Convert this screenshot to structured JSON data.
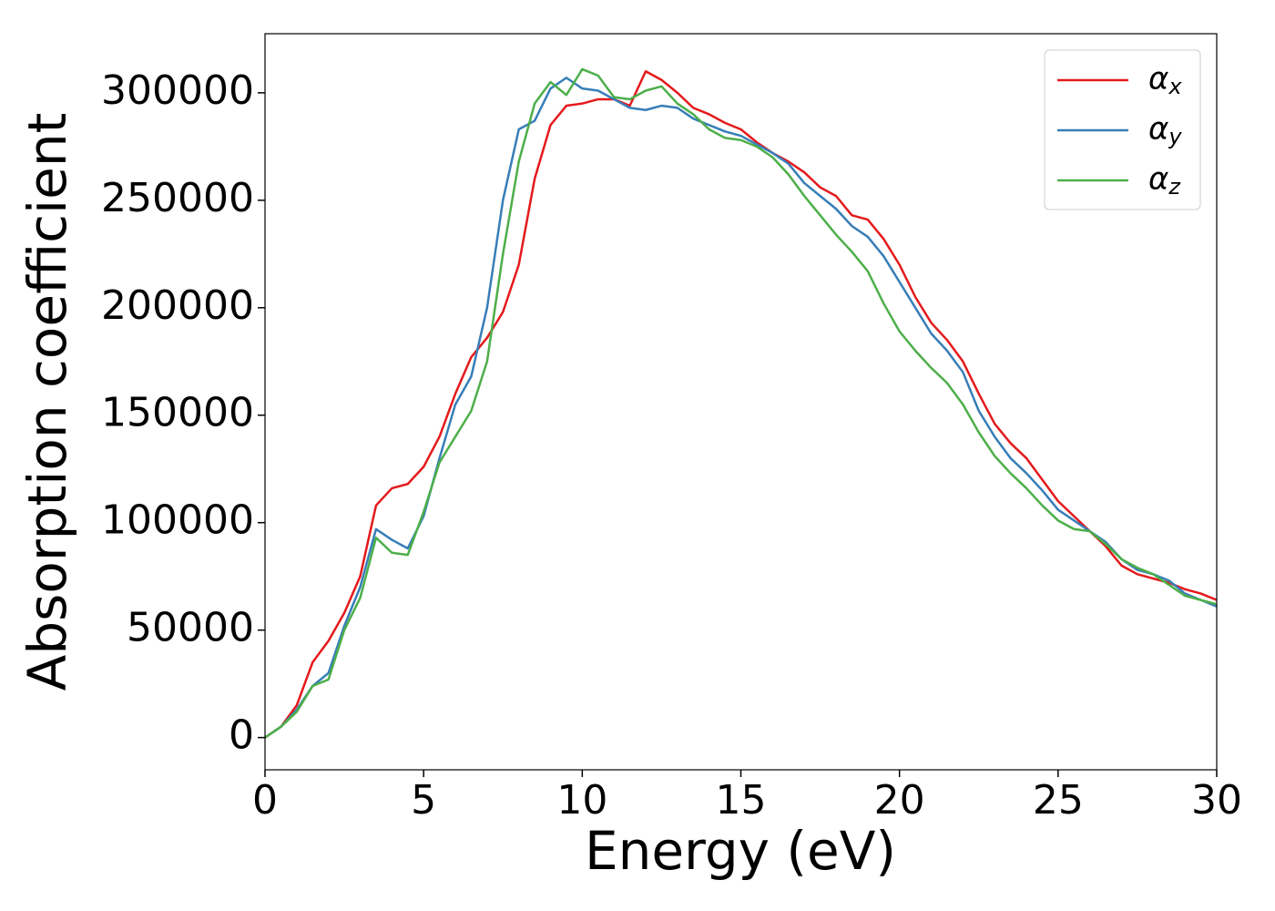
{
  "chart_data": {
    "type": "line",
    "xlabel": "Energy (eV)",
    "ylabel": "Absorption coefficient",
    "x": [
      0,
      0.5,
      1,
      1.5,
      2,
      2.5,
      3,
      3.5,
      4,
      4.5,
      5,
      5.5,
      6,
      6.5,
      7,
      7.5,
      8,
      8.5,
      9,
      9.5,
      10,
      10.5,
      11,
      11.5,
      12,
      12.5,
      13,
      13.5,
      14,
      14.5,
      15,
      15.5,
      16,
      16.5,
      17,
      17.5,
      18,
      18.5,
      19,
      19.5,
      20,
      20.5,
      21,
      21.5,
      22,
      22.5,
      23,
      23.5,
      24,
      24.5,
      25,
      25.5,
      26,
      26.5,
      27,
      27.5,
      28,
      28.5,
      29,
      29.5,
      30
    ],
    "series": [
      {
        "name": "αx",
        "color": "#e41a1c",
        "values": [
          0,
          5000,
          15000,
          35000,
          45000,
          58000,
          75000,
          108000,
          116000,
          118000,
          126000,
          140000,
          160000,
          177000,
          186000,
          198000,
          220000,
          260000,
          285000,
          294000,
          295000,
          297000,
          297000,
          294000,
          310000,
          306000,
          300000,
          293000,
          290000,
          286000,
          283000,
          277000,
          272000,
          268000,
          263000,
          256000,
          252000,
          243000,
          241000,
          232000,
          220000,
          205000,
          193000,
          185000,
          175000,
          160000,
          146000,
          137000,
          130000,
          120000,
          110000,
          103000,
          96000,
          89000,
          80000,
          76000,
          74000,
          72000,
          69000,
          67000,
          64000
        ]
      },
      {
        "name": "αy",
        "color": "#377eb8",
        "values": [
          0,
          5000,
          13000,
          24000,
          30000,
          52000,
          70000,
          97000,
          92000,
          88000,
          103000,
          130000,
          155000,
          168000,
          200000,
          250000,
          283000,
          287000,
          302000,
          307000,
          302000,
          301000,
          297000,
          293000,
          292000,
          294000,
          293000,
          288000,
          285000,
          282000,
          280000,
          276000,
          272000,
          267000,
          258000,
          252000,
          246000,
          238000,
          233000,
          224000,
          212000,
          200000,
          188000,
          180000,
          170000,
          152000,
          140000,
          130000,
          123000,
          115000,
          106000,
          101000,
          96000,
          91000,
          83000,
          78000,
          76000,
          73000,
          67000,
          64000,
          61000
        ]
      },
      {
        "name": "αz",
        "color": "#4daf4a",
        "values": [
          0,
          5000,
          12000,
          24000,
          27000,
          50000,
          65000,
          93000,
          86000,
          85000,
          105000,
          128000,
          140000,
          152000,
          175000,
          225000,
          268000,
          295000,
          305000,
          299000,
          311000,
          308000,
          298000,
          297000,
          301000,
          303000,
          295000,
          290000,
          283000,
          279000,
          278000,
          275000,
          270000,
          262000,
          252000,
          243000,
          234000,
          226000,
          217000,
          202000,
          189000,
          180000,
          172000,
          165000,
          155000,
          142000,
          131000,
          123000,
          116000,
          108000,
          101000,
          97000,
          96000,
          90000,
          83000,
          79000,
          76000,
          71000,
          66000,
          64000,
          62000
        ]
      }
    ],
    "xlim": [
      0,
      30
    ],
    "xticks": [
      0,
      5,
      10,
      15,
      20,
      25,
      30
    ],
    "ylim": [
      -15000,
      327500
    ],
    "yticks": [
      0,
      50000,
      100000,
      150000,
      200000,
      250000,
      300000
    ],
    "legend": "upper right"
  }
}
